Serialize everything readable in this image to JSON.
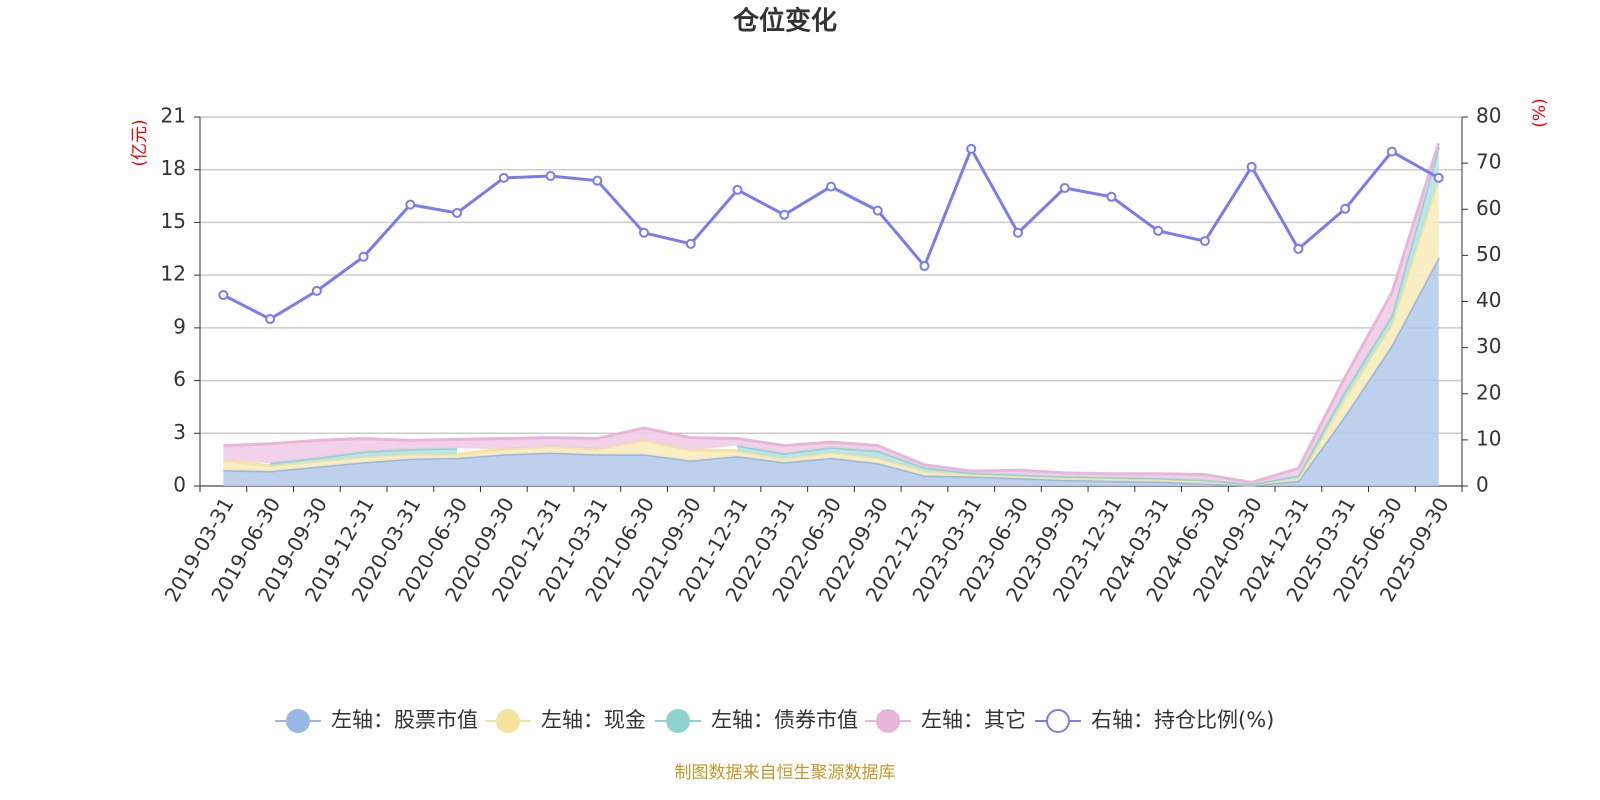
{
  "chart_data": {
    "type": "combo",
    "title": "仓位变化",
    "source": "制图数据来自恒生聚源数据库",
    "y_label": "(亿元)",
    "y2_label": "(%)",
    "categories": [
      "2019-03-31",
      "2019-06-30",
      "2019-09-30",
      "2019-12-31",
      "2020-03-31",
      "2020-06-30",
      "2020-09-30",
      "2020-12-31",
      "2021-03-31",
      "2021-06-30",
      "2021-09-30",
      "2021-12-31",
      "2022-03-31",
      "2022-06-30",
      "2022-09-30",
      "2022-12-31",
      "2023-03-31",
      "2023-06-30",
      "2023-09-30",
      "2023-12-31",
      "2024-03-31",
      "2024-06-30",
      "2024-09-30",
      "2024-12-31",
      "2025-03-31",
      "2025-06-30",
      "2025-09-30"
    ],
    "ylim": [
      0,
      21
    ],
    "yticks": [
      0,
      3,
      6,
      9,
      12,
      15,
      18,
      21
    ],
    "y2lim": [
      0,
      80
    ],
    "y2ticks": [
      0,
      10,
      20,
      30,
      40,
      50,
      60,
      70,
      80
    ],
    "grid": true,
    "stacked": true,
    "legend": "bottom",
    "series": [
      {
        "name": "左轴：股票市值",
        "type": "area",
        "color": "#9ab6e2",
        "fill": "#b6cbea",
        "values": [
          0.9,
          0.85,
          1.1,
          1.35,
          1.55,
          1.6,
          1.8,
          1.9,
          1.8,
          1.8,
          1.45,
          1.7,
          1.35,
          1.6,
          1.3,
          0.6,
          0.55,
          0.45,
          0.35,
          0.3,
          0.25,
          0.15,
          0.05,
          0.3,
          4.0,
          8.0,
          13.0
        ]
      },
      {
        "name": "左轴：现金",
        "type": "area",
        "color": "#f6e3a0",
        "fill": "#faecbc",
        "values": [
          0.55,
          0.3,
          0.3,
          0.3,
          0.25,
          0.2,
          0.3,
          0.35,
          0.3,
          0.8,
          0.6,
          0.3,
          0.2,
          0.3,
          0.3,
          0.25,
          0.1,
          0.1,
          0.1,
          0.1,
          0.1,
          0.1,
          0.05,
          0.1,
          1.0,
          1.2,
          4.5
        ]
      },
      {
        "name": "左轴：债券市值",
        "type": "area",
        "color": "#8fd2d2",
        "fill": "#b5e2e2",
        "values": [
          null,
          0.15,
          0.2,
          0.3,
          0.3,
          0.35,
          null,
          null,
          null,
          null,
          null,
          0.3,
          0.3,
          0.3,
          0.4,
          0.2,
          0.1,
          0.1,
          0.1,
          0.1,
          0.1,
          0.1,
          0.0,
          0.2,
          0.4,
          0.5,
          1.8
        ]
      },
      {
        "name": "左轴：其它",
        "type": "area",
        "color": "#e8b6da",
        "fill": "#efcde5",
        "values": [
          0.85,
          1.1,
          1.0,
          0.75,
          0.5,
          0.5,
          0.6,
          0.5,
          0.6,
          0.7,
          0.7,
          0.4,
          0.45,
          0.3,
          0.3,
          0.15,
          0.1,
          0.25,
          0.2,
          0.2,
          0.25,
          0.3,
          0.1,
          0.4,
          0.8,
          1.3,
          0.2
        ]
      },
      {
        "name": "右轴：持仓比例(%)",
        "type": "line",
        "axis": "y2",
        "color": "#7b7bef",
        "values": [
          41.4,
          36.2,
          42.3,
          49.7,
          61.0,
          59.2,
          66.8,
          67.2,
          66.2,
          54.9,
          52.5,
          64.2,
          58.8,
          64.9,
          59.7,
          47.7,
          73.1,
          54.9,
          64.6,
          62.7,
          55.3,
          53.1,
          69.2,
          51.4,
          60.1,
          72.5,
          66.8
        ]
      }
    ]
  }
}
